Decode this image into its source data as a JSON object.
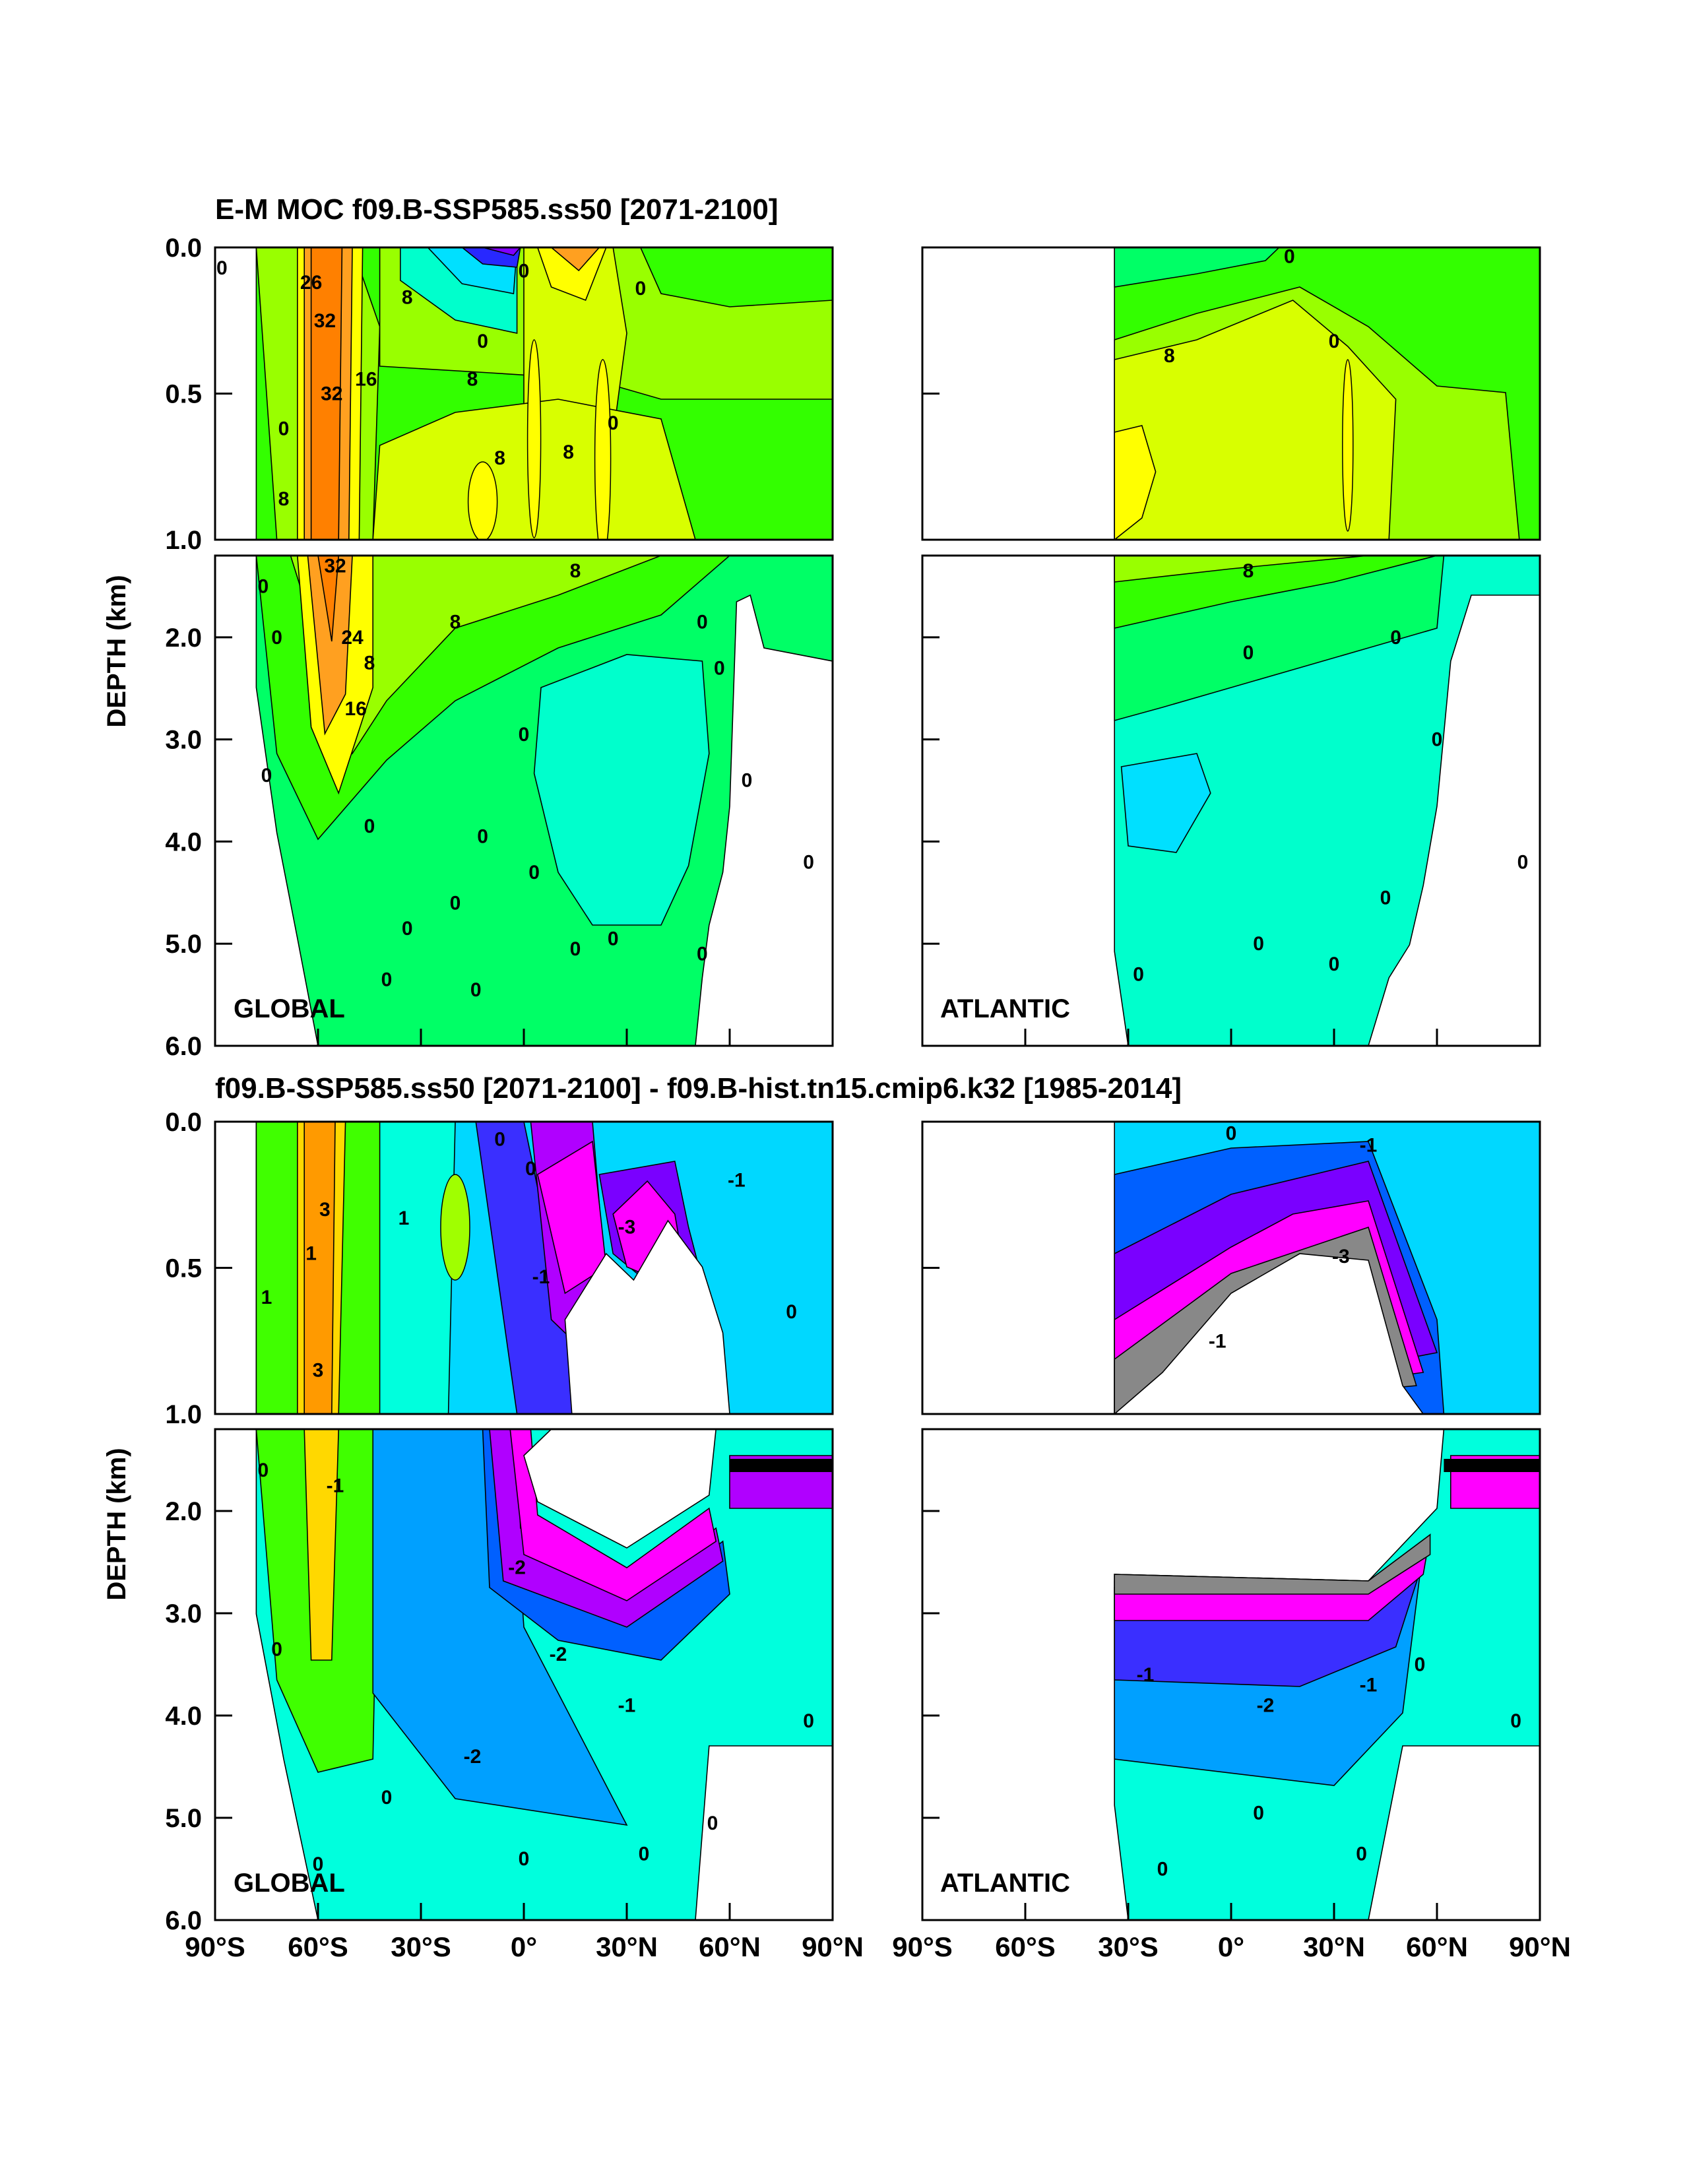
{
  "chart_data": [
    {
      "type": "heatmap",
      "title": "E-M MOC  f09.B-SSP585.ss50 [2071-2100]",
      "ylabel": "DEPTH (km)",
      "colors": [
        "#8000ff",
        "#2828ff",
        "#0090ff",
        "#00e0ff",
        "#00ffcc",
        "#00ff66",
        "#33ff00",
        "#99ff00",
        "#d8ff00",
        "#ffff00",
        "#ffd000",
        "#ffa020",
        "#ff8000"
      ],
      "panels": [
        {
          "region": "GLOBAL",
          "upper_ticks": [
            "0.0",
            "0.5",
            "1.0"
          ],
          "lower_ticks": [
            "2.0",
            "3.0",
            "4.0",
            "5.0",
            "6.0"
          ],
          "contour_labels": [
            {
              "text": "0",
              "lat": -88,
              "depth": 0.07
            },
            {
              "text": "26",
              "lat": -62,
              "depth": 0.12
            },
            {
              "text": "32",
              "lat": -58,
              "depth": 0.25
            },
            {
              "text": "8",
              "lat": -34,
              "depth": 0.17
            },
            {
              "text": "8",
              "lat": -15,
              "depth": 0.45
            },
            {
              "text": "0",
              "lat": -12,
              "depth": 0.32
            },
            {
              "text": "8",
              "lat": -7,
              "depth": 0.72
            },
            {
              "text": "0",
              "lat": 0,
              "depth": 0.08
            },
            {
              "text": "8",
              "lat": 13,
              "depth": 0.7
            },
            {
              "text": "0",
              "lat": 34,
              "depth": 0.14
            },
            {
              "text": "0",
              "lat": 26,
              "depth": 0.6
            },
            {
              "text": "0",
              "lat": -70,
              "depth": 0.62
            },
            {
              "text": "8",
              "lat": -70,
              "depth": 0.86
            },
            {
              "text": "32",
              "lat": -56,
              "depth": 0.5
            },
            {
              "text": "16",
              "lat": -46,
              "depth": 0.45
            },
            {
              "text": "0",
              "lat": -76,
              "depth": 1.5
            },
            {
              "text": "0",
              "lat": -72,
              "depth": 2.0
            },
            {
              "text": "32",
              "lat": -55,
              "depth": 1.3
            },
            {
              "text": "24",
              "lat": -50,
              "depth": 2.0
            },
            {
              "text": "8",
              "lat": -45,
              "depth": 2.25
            },
            {
              "text": "16",
              "lat": -49,
              "depth": 2.7
            },
            {
              "text": "8",
              "lat": -20,
              "depth": 1.85
            },
            {
              "text": "8",
              "lat": 15,
              "depth": 1.35
            },
            {
              "text": "0",
              "lat": 0,
              "depth": 2.95
            },
            {
              "text": "0",
              "lat": 52,
              "depth": 1.85
            },
            {
              "text": "0",
              "lat": 57,
              "depth": 2.3
            },
            {
              "text": "0",
              "lat": 65,
              "depth": 3.4
            },
            {
              "text": "0",
              "lat": -75,
              "depth": 3.35
            },
            {
              "text": "0",
              "lat": -45,
              "depth": 3.85
            },
            {
              "text": "0",
              "lat": -12,
              "depth": 3.95
            },
            {
              "text": "0",
              "lat": 3,
              "depth": 4.3
            },
            {
              "text": "0",
              "lat": -20,
              "depth": 4.6
            },
            {
              "text": "0",
              "lat": -34,
              "depth": 4.85
            },
            {
              "text": "0",
              "lat": -40,
              "depth": 5.35
            },
            {
              "text": "0",
              "lat": 15,
              "depth": 5.05
            },
            {
              "text": "0",
              "lat": 26,
              "depth": 4.95
            },
            {
              "text": "0",
              "lat": 52,
              "depth": 5.1
            },
            {
              "text": "0",
              "lat": -14,
              "depth": 5.45
            },
            {
              "text": "0",
              "lat": 83,
              "depth": 4.2
            }
          ]
        },
        {
          "region": "ATLANTIC",
          "upper_ticks": [
            "0.0",
            "0.5",
            "1.0"
          ],
          "lower_ticks": [
            "2.0",
            "3.0",
            "4.0",
            "5.0",
            "6.0"
          ],
          "contour_labels": [
            {
              "text": "0",
              "lat": 17,
              "depth": 0.03
            },
            {
              "text": "8",
              "lat": -18,
              "depth": 0.37
            },
            {
              "text": "0",
              "lat": 30,
              "depth": 0.32
            },
            {
              "text": "8",
              "lat": 5,
              "depth": 1.35
            },
            {
              "text": "0",
              "lat": 5,
              "depth": 2.15
            },
            {
              "text": "0",
              "lat": 48,
              "depth": 2.0
            },
            {
              "text": "0",
              "lat": 60,
              "depth": 3.0
            },
            {
              "text": "0",
              "lat": -27,
              "depth": 5.3
            },
            {
              "text": "0",
              "lat": 8,
              "depth": 5.0
            },
            {
              "text": "0",
              "lat": 30,
              "depth": 5.2
            },
            {
              "text": "0",
              "lat": 45,
              "depth": 4.55
            },
            {
              "text": "0",
              "lat": 85,
              "depth": 4.2
            }
          ]
        }
      ]
    },
    {
      "type": "heatmap",
      "title": "f09.B-SSP585.ss50 [2071-2100] - f09.B-hist.tn15.cmip6.k32 [1985-2014]",
      "ylabel": "DEPTH (km)",
      "colors": [
        "#c0c0c0",
        "#888888",
        "#ff00ff",
        "#b000ff",
        "#7a00ff",
        "#3a2fff",
        "#0060ff",
        "#00a0ff",
        "#00d8ff",
        "#00ffdd",
        "#00ff80",
        "#40ff00",
        "#a0ff00",
        "#e8ff00",
        "#ffd800",
        "#ff9a00"
      ],
      "panels": [
        {
          "region": "GLOBAL",
          "upper_ticks": [
            "0.0",
            "0.5",
            "1.0"
          ],
          "lower_ticks": [
            "2.0",
            "3.0",
            "4.0",
            "5.0",
            "6.0"
          ],
          "contour_labels": [
            {
              "text": "1",
              "lat": -75,
              "depth": 0.6
            },
            {
              "text": "3",
              "lat": -58,
              "depth": 0.3
            },
            {
              "text": "1",
              "lat": -62,
              "depth": 0.45
            },
            {
              "text": "0",
              "lat": -7,
              "depth": 0.06
            },
            {
              "text": "0",
              "lat": 2,
              "depth": 0.16
            },
            {
              "text": "-1",
              "lat": 5,
              "depth": 0.53
            },
            {
              "text": "-3",
              "lat": 30,
              "depth": 0.36
            },
            {
              "text": "-1",
              "lat": 62,
              "depth": 0.2
            },
            {
              "text": "0",
              "lat": 78,
              "depth": 0.65
            },
            {
              "text": "3",
              "lat": -60,
              "depth": 0.85
            },
            {
              "text": "1",
              "lat": -35,
              "depth": 0.33
            },
            {
              "text": "-1",
              "lat": -55,
              "depth": 1.75
            },
            {
              "text": "-2",
              "lat": -2,
              "depth": 2.55
            },
            {
              "text": "-2",
              "lat": 10,
              "depth": 3.4
            },
            {
              "text": "-1",
              "lat": 30,
              "depth": 3.9
            },
            {
              "text": "-2",
              "lat": -15,
              "depth": 4.4
            },
            {
              "text": "0",
              "lat": -76,
              "depth": 1.6
            },
            {
              "text": "0",
              "lat": -72,
              "depth": 3.35
            },
            {
              "text": "0",
              "lat": -60,
              "depth": 5.45
            },
            {
              "text": "0",
              "lat": 0,
              "depth": 5.4
            },
            {
              "text": "0",
              "lat": 35,
              "depth": 5.35
            },
            {
              "text": "0",
              "lat": 55,
              "depth": 5.05
            },
            {
              "text": "0",
              "lat": 83,
              "depth": 4.05
            },
            {
              "text": "0",
              "lat": -40,
              "depth": 4.8
            }
          ]
        },
        {
          "region": "ATLANTIC",
          "upper_ticks": [
            "0.0",
            "0.5",
            "1.0"
          ],
          "lower_ticks": [
            "2.0",
            "3.0",
            "4.0",
            "5.0",
            "6.0"
          ],
          "contour_labels": [
            {
              "text": "0",
              "lat": 0,
              "depth": 0.04
            },
            {
              "text": "-1",
              "lat": 40,
              "depth": 0.08
            },
            {
              "text": "-1",
              "lat": -4,
              "depth": 0.75
            },
            {
              "text": "-3",
              "lat": 32,
              "depth": 0.46
            },
            {
              "text": "-1",
              "lat": -25,
              "depth": 3.6
            },
            {
              "text": "-2",
              "lat": 10,
              "depth": 3.9
            },
            {
              "text": "-1",
              "lat": 40,
              "depth": 3.7
            },
            {
              "text": "0",
              "lat": 8,
              "depth": 4.95
            },
            {
              "text": "0",
              "lat": -20,
              "depth": 5.5
            },
            {
              "text": "0",
              "lat": 38,
              "depth": 5.35
            },
            {
              "text": "0",
              "lat": 83,
              "depth": 4.05
            },
            {
              "text": "0",
              "lat": 55,
              "depth": 3.5
            }
          ]
        }
      ]
    }
  ],
  "xticks": [
    "90°S",
    "60°S",
    "30°S",
    "0°",
    "30°N",
    "60°N",
    "90°N"
  ]
}
